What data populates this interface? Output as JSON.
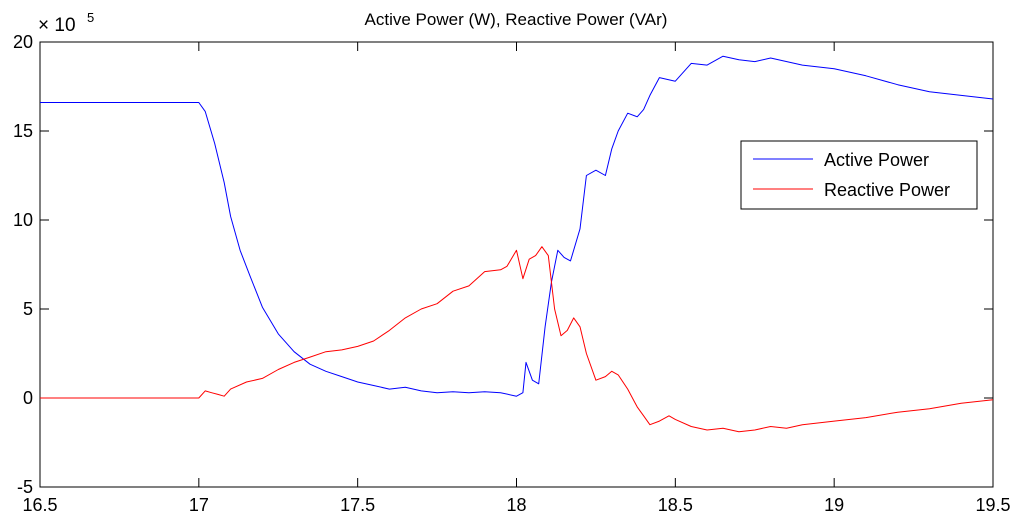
{
  "chart_data": {
    "type": "line",
    "title": "Active Power (W), Reactive Power (VAr)",
    "xlabel": "",
    "ylabel": "",
    "y_multiplier_base": "× 10",
    "y_multiplier_exponent": "5",
    "xlim": [
      16.5,
      19.5
    ],
    "ylim": [
      -5,
      20
    ],
    "xticks": [
      16.5,
      17,
      17.5,
      18,
      18.5,
      19,
      19.5
    ],
    "xtick_labels": [
      "16.5",
      "17",
      "17.5",
      "18",
      "18.5",
      "19",
      "19.5"
    ],
    "yticks": [
      -5,
      0,
      5,
      10,
      15,
      20
    ],
    "ytick_labels": [
      "-5",
      "0",
      "5",
      "10",
      "15",
      "20"
    ],
    "grid": false,
    "legend_position": "right",
    "series": [
      {
        "name": "Active Power",
        "color": "#0000ff",
        "x": [
          16.5,
          16.99,
          17.0,
          17.02,
          17.05,
          17.08,
          17.1,
          17.13,
          17.16,
          17.2,
          17.25,
          17.3,
          17.35,
          17.4,
          17.45,
          17.5,
          17.55,
          17.6,
          17.65,
          17.7,
          17.75,
          17.8,
          17.85,
          17.9,
          17.95,
          18.0,
          18.02,
          18.03,
          18.05,
          18.07,
          18.09,
          18.11,
          18.13,
          18.15,
          18.17,
          18.2,
          18.22,
          18.25,
          18.28,
          18.3,
          18.32,
          18.35,
          18.38,
          18.4,
          18.42,
          18.45,
          18.5,
          18.55,
          18.6,
          18.65,
          18.7,
          18.75,
          18.8,
          18.9,
          19.0,
          19.1,
          19.2,
          19.3,
          19.4,
          19.5
        ],
        "y": [
          16.6,
          16.6,
          16.6,
          16.1,
          14.3,
          12.1,
          10.2,
          8.3,
          6.9,
          5.1,
          3.6,
          2.6,
          1.9,
          1.5,
          1.2,
          0.9,
          0.7,
          0.5,
          0.6,
          0.4,
          0.3,
          0.35,
          0.3,
          0.35,
          0.3,
          0.1,
          0.3,
          2.0,
          1.0,
          0.8,
          4.0,
          6.5,
          8.3,
          7.9,
          7.7,
          9.5,
          12.5,
          12.8,
          12.5,
          14.0,
          15.0,
          16.0,
          15.8,
          16.2,
          17.0,
          18.0,
          17.8,
          18.8,
          18.7,
          19.2,
          19.0,
          18.9,
          19.1,
          18.7,
          18.5,
          18.1,
          17.6,
          17.2,
          17.0,
          16.8
        ]
      },
      {
        "name": "Reactive Power",
        "color": "#ff0000",
        "x": [
          16.5,
          16.99,
          17.0,
          17.02,
          17.04,
          17.06,
          17.08,
          17.1,
          17.15,
          17.2,
          17.25,
          17.3,
          17.35,
          17.4,
          17.45,
          17.5,
          17.55,
          17.6,
          17.65,
          17.7,
          17.75,
          17.8,
          17.85,
          17.9,
          17.95,
          17.97,
          17.99,
          18.0,
          18.02,
          18.04,
          18.06,
          18.08,
          18.1,
          18.12,
          18.14,
          18.16,
          18.18,
          18.2,
          18.22,
          18.25,
          18.28,
          18.3,
          18.32,
          18.35,
          18.38,
          18.4,
          18.42,
          18.45,
          18.48,
          18.5,
          18.55,
          18.6,
          18.65,
          18.7,
          18.75,
          18.8,
          18.85,
          18.9,
          19.0,
          19.1,
          19.2,
          19.3,
          19.4,
          19.5
        ],
        "y": [
          0.0,
          0.0,
          0.0,
          0.4,
          0.3,
          0.2,
          0.1,
          0.5,
          0.9,
          1.1,
          1.6,
          2.0,
          2.3,
          2.6,
          2.7,
          2.9,
          3.2,
          3.8,
          4.5,
          5.0,
          5.3,
          6.0,
          6.3,
          7.1,
          7.2,
          7.4,
          8.0,
          8.3,
          6.7,
          7.8,
          8.0,
          8.5,
          8.0,
          5.0,
          3.5,
          3.8,
          4.5,
          4.0,
          2.5,
          1.0,
          1.2,
          1.5,
          1.3,
          0.5,
          -0.5,
          -1.0,
          -1.5,
          -1.3,
          -1.0,
          -1.2,
          -1.6,
          -1.8,
          -1.7,
          -1.9,
          -1.8,
          -1.6,
          -1.7,
          -1.5,
          -1.3,
          -1.1,
          -0.8,
          -0.6,
          -0.3,
          -0.1
        ]
      }
    ]
  }
}
